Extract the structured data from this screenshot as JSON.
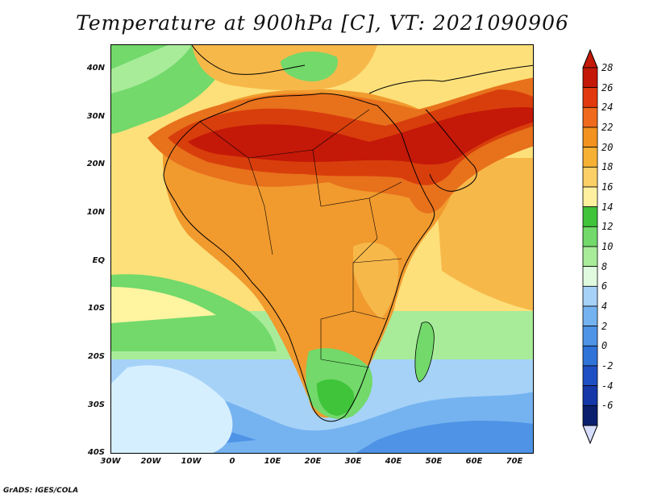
{
  "title": "Temperature at 900hPa [C], VT: 2021090906",
  "credit": "GrADS: IGES/COLA",
  "map": {
    "lon_range": [
      -30,
      76
    ],
    "lat_range": [
      -40,
      45
    ],
    "lon_ticks": [
      "30W",
      "20W",
      "10W",
      "0",
      "10E",
      "20E",
      "30E",
      "40E",
      "50E",
      "60E",
      "70E"
    ],
    "lat_ticks": [
      "40N",
      "30N",
      "20N",
      "10N",
      "EQ",
      "10S",
      "20S",
      "30S",
      "40S"
    ],
    "fill_palette": [
      "#0b1f6e",
      "#1f4fc4",
      "#2f72d8",
      "#4f93e6",
      "#75b3f0",
      "#a6d2f8",
      "#d6efff",
      "#f2fff2",
      "#a8ec9a",
      "#72d96a",
      "#3fc43a",
      "#fff4a0",
      "#fde07a",
      "#f7b84a",
      "#f19a2e",
      "#e8711c",
      "#d83e0c",
      "#c41808"
    ]
  },
  "colorbar": {
    "labels": [
      "28",
      "26",
      "24",
      "22",
      "20",
      "18",
      "16",
      "14",
      "12",
      "10",
      "8",
      "6",
      "4",
      "2",
      "0",
      "-2",
      "-4",
      "-6"
    ],
    "colors": [
      "#c41808",
      "#e23a0e",
      "#ef6a1c",
      "#f3921f",
      "#f6b135",
      "#fcd067",
      "#fff0a0",
      "#3fc43a",
      "#72d96a",
      "#a8ec9a",
      "#e0fae0",
      "#a6d2f8",
      "#75b3f0",
      "#4f93e6",
      "#2f72d8",
      "#1f4fc4",
      "#1537a8",
      "#0b1f6e"
    ],
    "top_arrow_color": "#c41808",
    "bottom_arrow_color": "#d6ddff"
  }
}
